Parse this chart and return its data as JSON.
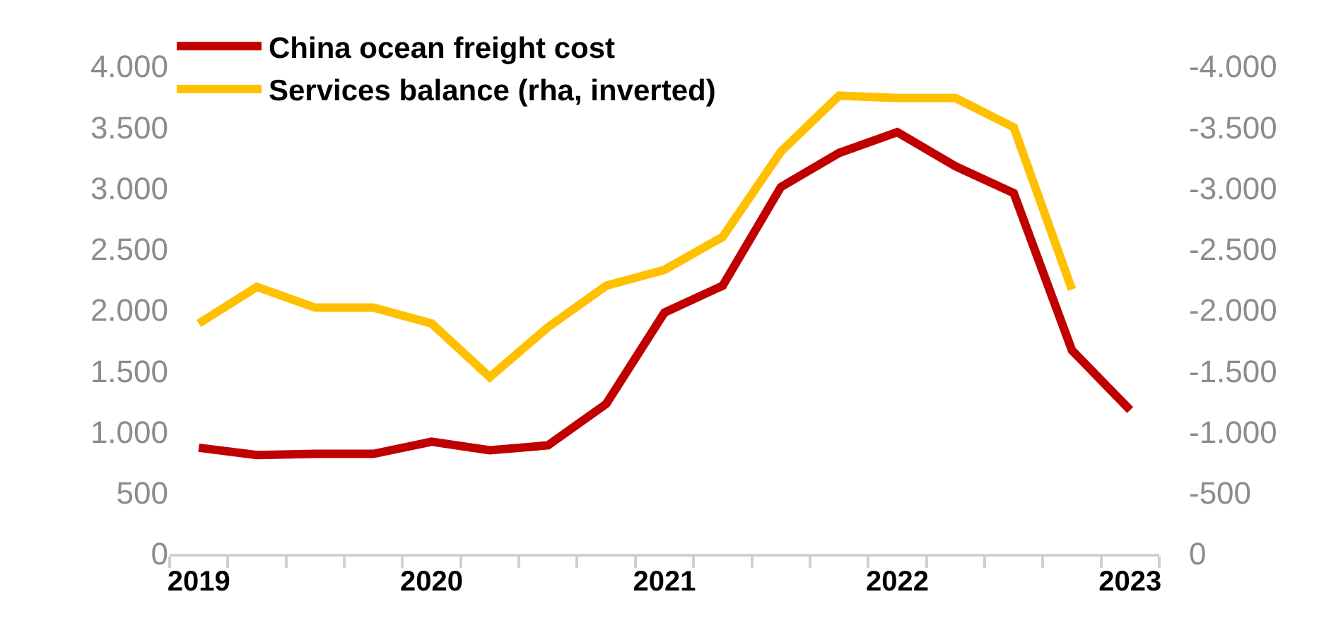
{
  "chart_data": {
    "type": "line",
    "categories": [
      "2019",
      null,
      null,
      null,
      "2020",
      null,
      null,
      null,
      "2021",
      null,
      null,
      null,
      "2022",
      null,
      null,
      null,
      "2023"
    ],
    "series": [
      {
        "name": "China ocean freight cost",
        "color": "#c00000",
        "values": [
          870,
          810,
          820,
          820,
          920,
          850,
          890,
          1230,
          1980,
          2200,
          3010,
          3290,
          3460,
          3180,
          2960,
          1670,
          1180
        ]
      },
      {
        "name": "Services balance (rha, inverted)",
        "color": "#ffc000",
        "axis": "y2",
        "values": [
          -1890,
          -2190,
          -2020,
          -2020,
          -1890,
          -1450,
          -1860,
          -2200,
          -2330,
          -2600,
          -3300,
          -3760,
          -3740,
          -3740,
          -3500,
          -2170,
          null
        ]
      }
    ],
    "ylim": [
      0,
      4000
    ],
    "yticks": [
      0,
      500,
      {
        "value": 1000,
        "label": "1.000"
      },
      {
        "value": 1500,
        "label": "1.500"
      },
      {
        "value": 2000,
        "label": "2.000"
      },
      {
        "value": 2500,
        "label": "2.500"
      },
      {
        "value": 3000,
        "label": "3.000"
      },
      {
        "value": 3500,
        "label": "3.500"
      },
      {
        "value": 4000,
        "label": "4.000"
      }
    ],
    "y2lim": [
      0,
      -4000
    ],
    "y2ticks": [
      0,
      -500,
      {
        "value": -1000,
        "label": "-1.000"
      },
      {
        "value": -1500,
        "label": "-1.500"
      },
      {
        "value": -2000,
        "label": "-2.000"
      },
      {
        "value": -2500,
        "label": "-2.500"
      },
      {
        "value": -3000,
        "label": "-3.000"
      },
      {
        "value": -3500,
        "label": "-3.500"
      },
      {
        "value": -4000,
        "label": "-4.000"
      }
    ],
    "legend": "top left",
    "marker": "none",
    "line_style": "solid"
  }
}
